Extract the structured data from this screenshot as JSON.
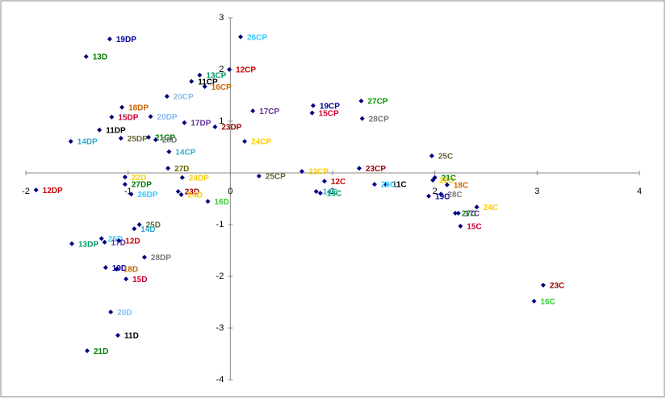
{
  "chart_data": {
    "type": "scatter",
    "xlim": [
      -2,
      4
    ],
    "ylim": [
      -4,
      3
    ],
    "xticks": [
      -2,
      -1,
      0,
      1,
      2,
      3,
      4
    ],
    "yticks": [
      -4,
      -3,
      -2,
      -1,
      1,
      2,
      3
    ],
    "points": [
      {
        "label": "19DP",
        "x": -1.18,
        "y": 2.59,
        "color": "#000099"
      },
      {
        "label": "13D",
        "x": -1.41,
        "y": 2.25,
        "color": "#007A00"
      },
      {
        "label": "26CP",
        "x": 0.1,
        "y": 2.63,
        "color": "#33CCFF"
      },
      {
        "label": "12CP",
        "x": -0.01,
        "y": 2.0,
        "color": "#CC0000"
      },
      {
        "label": "13CP",
        "x": -0.3,
        "y": 1.89,
        "color": "#009966"
      },
      {
        "label": "11CP",
        "x": -0.38,
        "y": 1.77,
        "color": "#000000"
      },
      {
        "label": "16CP",
        "x": -0.25,
        "y": 1.67,
        "color": "#CC6600"
      },
      {
        "label": "20CP",
        "x": -0.62,
        "y": 1.48,
        "color": "#88BBEE"
      },
      {
        "label": "18DP",
        "x": -1.06,
        "y": 1.27,
        "color": "#CC6600"
      },
      {
        "label": "15DP",
        "x": -1.16,
        "y": 1.08,
        "color": "#CC0033"
      },
      {
        "label": "20DP",
        "x": -0.78,
        "y": 1.09,
        "color": "#88BBEE"
      },
      {
        "label": "17DP",
        "x": -0.45,
        "y": 0.97,
        "color": "#663399"
      },
      {
        "label": "11DP",
        "x": -1.28,
        "y": 0.83,
        "color": "#000000"
      },
      {
        "label": "14DP",
        "x": -1.56,
        "y": 0.61,
        "color": "#33AACC"
      },
      {
        "label": "25DP",
        "x": -1.07,
        "y": 0.67,
        "color": "#666633"
      },
      {
        "label": "21CP",
        "x": -0.8,
        "y": 0.69,
        "color": "#007A00"
      },
      {
        "label": "28D",
        "x": -0.73,
        "y": 0.64,
        "color": "#777777"
      },
      {
        "label": "23DP",
        "x": -0.15,
        "y": 0.89,
        "color": "#990000"
      },
      {
        "label": "14CP",
        "x": -0.6,
        "y": 0.41,
        "color": "#33AACC"
      },
      {
        "label": "17CP",
        "x": 0.22,
        "y": 1.2,
        "color": "#663399"
      },
      {
        "label": "19CP",
        "x": 0.81,
        "y": 1.3,
        "color": "#000099"
      },
      {
        "label": "15CP",
        "x": 0.8,
        "y": 1.16,
        "color": "#CC0033"
      },
      {
        "label": "27CP",
        "x": 1.28,
        "y": 1.39,
        "color": "#009900"
      },
      {
        "label": "28CP",
        "x": 1.29,
        "y": 1.05,
        "color": "#777777"
      },
      {
        "label": "24CP",
        "x": 0.14,
        "y": 0.61,
        "color": "#FFCC00"
      },
      {
        "label": "25C",
        "x": 1.97,
        "y": 0.33,
        "color": "#666633"
      },
      {
        "label": "23CP",
        "x": 1.26,
        "y": 0.09,
        "color": "#990000"
      },
      {
        "label": "22CP",
        "x": 0.7,
        "y": 0.03,
        "color": "#FFCC00"
      },
      {
        "label": "25CP",
        "x": 0.28,
        "y": -0.06,
        "color": "#666633"
      },
      {
        "label": "12C",
        "x": 0.92,
        "y": -0.16,
        "color": "#CC0000"
      },
      {
        "label": "11C",
        "x": 1.52,
        "y": -0.22,
        "color": "#000000"
      },
      {
        "label": "26C",
        "x": 1.41,
        "y": -0.22,
        "color": "#33CCFF"
      },
      {
        "label": "14C",
        "x": 0.84,
        "y": -0.36,
        "color": "#33AACC"
      },
      {
        "label": "13C",
        "x": 0.88,
        "y": -0.39,
        "color": "#009966"
      },
      {
        "label": "21C",
        "x": 2.0,
        "y": -0.09,
        "color": "#007A00"
      },
      {
        "label": "22C",
        "x": 1.98,
        "y": -0.14,
        "color": "#FFCC00"
      },
      {
        "label": "18C",
        "x": 2.12,
        "y": -0.23,
        "color": "#CC6600"
      },
      {
        "label": "28C",
        "x": 2.06,
        "y": -0.41,
        "color": "#777777"
      },
      {
        "label": "19C",
        "x": 1.94,
        "y": -0.45,
        "color": "#000099"
      },
      {
        "label": "24C",
        "x": 2.41,
        "y": -0.66,
        "color": "#FFCC00"
      },
      {
        "label": "27C",
        "x": 2.2,
        "y": -0.78,
        "color": "#009900"
      },
      {
        "label": "17C",
        "x": 2.23,
        "y": -0.78,
        "color": "#663399"
      },
      {
        "label": "15C",
        "x": 2.25,
        "y": -1.03,
        "color": "#CC0033"
      },
      {
        "label": "23C",
        "x": 3.06,
        "y": -2.17,
        "color": "#990000"
      },
      {
        "label": "16C",
        "x": 2.97,
        "y": -2.48,
        "color": "#33CC33"
      },
      {
        "label": "12DP",
        "x": -1.9,
        "y": -0.33,
        "color": "#CC0000"
      },
      {
        "label": "22D",
        "x": -1.03,
        "y": -0.08,
        "color": "#FFCC00"
      },
      {
        "label": "27DP",
        "x": -1.03,
        "y": -0.22,
        "color": "#007A00"
      },
      {
        "label": "27D",
        "x": -0.61,
        "y": 0.09,
        "color": "#666600"
      },
      {
        "label": "26DP",
        "x": -0.97,
        "y": -0.41,
        "color": "#33CCFF"
      },
      {
        "label": "24DP",
        "x": -0.47,
        "y": -0.09,
        "color": "#FFCC00"
      },
      {
        "label": "23D",
        "x": -0.51,
        "y": -0.36,
        "color": "#990000"
      },
      {
        "label": "24D",
        "x": -0.48,
        "y": -0.42,
        "color": "#FFCC00"
      },
      {
        "label": "16D",
        "x": -0.22,
        "y": -0.55,
        "color": "#33CC33"
      },
      {
        "label": "25D",
        "x": -0.89,
        "y": -1.0,
        "color": "#666633"
      },
      {
        "label": "14D",
        "x": -0.94,
        "y": -1.08,
        "color": "#33AACC"
      },
      {
        "label": "26D",
        "x": -1.26,
        "y": -1.27,
        "color": "#33CCFF"
      },
      {
        "label": "13DP",
        "x": -1.55,
        "y": -1.37,
        "color": "#009966"
      },
      {
        "label": "17D",
        "x": -1.23,
        "y": -1.34,
        "color": "#663399"
      },
      {
        "label": "12D",
        "x": -1.09,
        "y": -1.31,
        "color": "#CC0000"
      },
      {
        "label": "28DP",
        "x": -0.84,
        "y": -1.63,
        "color": "#777777"
      },
      {
        "label": "19D",
        "x": -1.22,
        "y": -1.83,
        "color": "#000099"
      },
      {
        "label": "18D",
        "x": -1.11,
        "y": -1.86,
        "color": "#CC6600"
      },
      {
        "label": "15D",
        "x": -1.02,
        "y": -2.05,
        "color": "#CC0033"
      },
      {
        "label": "20D",
        "x": -1.17,
        "y": -2.69,
        "color": "#88BBEE"
      },
      {
        "label": "11D",
        "x": -1.1,
        "y": -3.14,
        "color": "#000000"
      },
      {
        "label": "21D",
        "x": -1.4,
        "y": -3.44,
        "color": "#007A00"
      }
    ]
  }
}
